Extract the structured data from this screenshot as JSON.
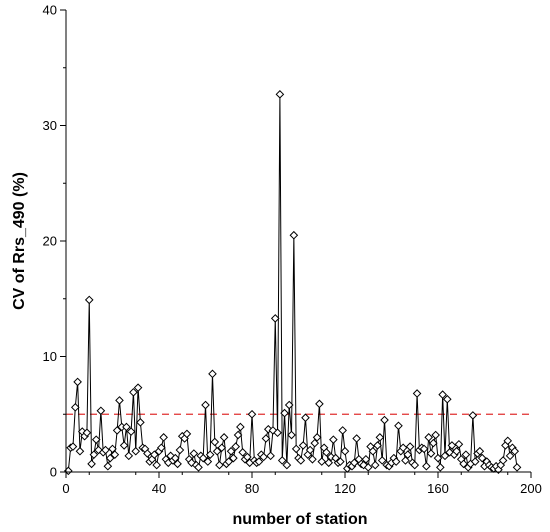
{
  "chart_data": {
    "type": "line",
    "title": "",
    "xlabel": "number of station",
    "ylabel": "CV of Rrs_490 (%)",
    "xlim": [
      0,
      200
    ],
    "ylim": [
      0,
      40
    ],
    "x_ticks": [
      0,
      40,
      80,
      120,
      160,
      200
    ],
    "y_ticks": [
      0,
      10,
      20,
      30,
      40
    ],
    "grid": false,
    "legend": "none",
    "marker": "diamond",
    "line_color": "#000000",
    "reference_line": {
      "y": 5,
      "style": "dashed",
      "color": "#e03030"
    },
    "series": [
      {
        "name": "",
        "x": [
          1,
          2,
          3,
          4,
          5,
          6,
          7,
          8,
          9,
          10,
          11,
          12,
          13,
          14,
          15,
          16,
          17,
          18,
          19,
          20,
          21,
          22,
          23,
          24,
          25,
          26,
          27,
          28,
          29,
          30,
          31,
          32,
          33,
          34,
          35,
          36,
          37,
          38,
          39,
          40,
          41,
          42,
          43,
          44,
          45,
          46,
          47,
          48,
          49,
          50,
          51,
          52,
          53,
          54,
          55,
          56,
          57,
          58,
          59,
          60,
          61,
          62,
          63,
          64,
          65,
          66,
          67,
          68,
          69,
          70,
          71,
          72,
          73,
          74,
          75,
          76,
          77,
          78,
          79,
          80,
          81,
          82,
          83,
          84,
          85,
          86,
          87,
          88,
          89,
          90,
          91,
          92,
          93,
          94,
          95,
          96,
          97,
          98,
          99,
          100,
          101,
          102,
          103,
          104,
          105,
          106,
          107,
          108,
          109,
          110,
          111,
          112,
          113,
          114,
          115,
          116,
          117,
          118,
          119,
          120,
          121,
          122,
          123,
          124,
          125,
          126,
          127,
          128,
          129,
          130,
          131,
          132,
          133,
          134,
          135,
          136,
          137,
          138,
          139,
          140,
          141,
          142,
          143,
          144,
          145,
          146,
          147,
          148,
          149,
          150,
          151,
          152,
          153,
          154,
          155,
          156,
          157,
          158,
          159,
          160,
          161,
          162,
          163,
          164,
          165,
          166,
          167,
          168,
          169,
          170,
          171,
          172,
          173,
          174,
          175,
          176,
          177,
          178,
          179,
          180,
          181,
          182,
          183,
          184,
          185,
          186,
          187,
          188,
          189,
          190,
          191,
          192,
          193,
          194
        ],
        "y": [
          0.1,
          2.1,
          2.2,
          5.6,
          7.8,
          1.8,
          3.5,
          3.1,
          3.4,
          14.9,
          0.7,
          1.5,
          2.8,
          1.9,
          5.3,
          1.7,
          1.9,
          0.5,
          1.2,
          2.0,
          1.5,
          3.6,
          6.2,
          3.9,
          2.3,
          3.9,
          1.4,
          3.5,
          6.9,
          1.8,
          7.3,
          4.3,
          2.1,
          2.0,
          1.6,
          0.9,
          1.1,
          1.5,
          0.6,
          1.8,
          2.1,
          3.0,
          1.1,
          0.8,
          1.4,
          1.0,
          1.2,
          0.7,
          1.9,
          3.1,
          2.9,
          3.3,
          1.1,
          0.8,
          1.6,
          0.6,
          0.4,
          1.4,
          1.2,
          5.8,
          0.9,
          1.5,
          8.5,
          2.6,
          1.8,
          0.6,
          2.1,
          3.0,
          0.7,
          0.9,
          1.8,
          1.2,
          2.2,
          3.2,
          3.9,
          1.7,
          1.1,
          1.3,
          0.8,
          5.0,
          1.0,
          0.8,
          0.9,
          1.5,
          1.3,
          2.9,
          3.7,
          1.4,
          3.6,
          13.3,
          3.4,
          32.7,
          1.0,
          5.1,
          0.6,
          5.8,
          3.2,
          20.5,
          2.0,
          1.2,
          1.0,
          2.3,
          4.7,
          1.5,
          1.9,
          1.1,
          2.5,
          3.0,
          5.9,
          0.9,
          2.1,
          1.7,
          0.8,
          1.3,
          2.8,
          1.2,
          0.8,
          0.9,
          3.6,
          1.8,
          0.3,
          0.6,
          0.5,
          0.8,
          2.9,
          1.1,
          0.7,
          0.6,
          1.1,
          0.4,
          2.2,
          1.8,
          0.6,
          2.3,
          3.0,
          1.0,
          4.5,
          0.6,
          0.5,
          0.8,
          1.2,
          0.9,
          4.0,
          1.8,
          2.1,
          1.0,
          1.5,
          2.2,
          0.8,
          0.6,
          6.8,
          1.9,
          2.1,
          2.0,
          0.5,
          3.0,
          1.6,
          2.5,
          3.2,
          1.2,
          0.4,
          6.7,
          1.4,
          6.3,
          1.7,
          2.3,
          1.5,
          1.8,
          2.4,
          1.1,
          0.7,
          1.5,
          0.4,
          0.7,
          4.9,
          0.9,
          1.6,
          1.8,
          1.2,
          0.5,
          0.9,
          0.6,
          0.4,
          0.3,
          0.5,
          0.2,
          0.6,
          1.0,
          2.3,
          2.7,
          1.4,
          2.1,
          1.8,
          0.4
        ]
      }
    ]
  }
}
